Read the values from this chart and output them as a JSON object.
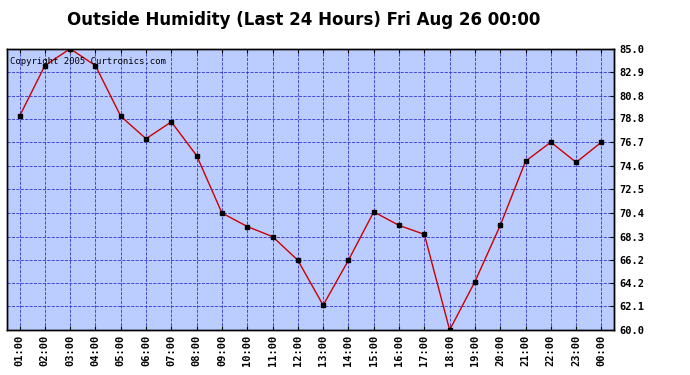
{
  "title": "Outside Humidity (Last 24 Hours) Fri Aug 26 00:00",
  "copyright": "Copyright 2005 Curtronics.com",
  "x_labels": [
    "01:00",
    "02:00",
    "03:00",
    "04:00",
    "05:00",
    "06:00",
    "07:00",
    "08:00",
    "09:00",
    "10:00",
    "11:00",
    "12:00",
    "13:00",
    "14:00",
    "15:00",
    "16:00",
    "17:00",
    "18:00",
    "19:00",
    "20:00",
    "21:00",
    "22:00",
    "23:00",
    "00:00"
  ],
  "y_values": [
    79.0,
    83.5,
    85.0,
    83.5,
    79.0,
    77.0,
    78.5,
    75.5,
    70.4,
    69.2,
    68.3,
    66.2,
    62.2,
    66.2,
    70.5,
    69.3,
    68.5,
    60.0,
    64.3,
    69.3,
    75.0,
    76.7,
    74.9,
    76.7
  ],
  "line_color": "#cc0000",
  "marker_color": "#000000",
  "bg_color": "#ffffff",
  "plot_bg_color": "#bbccff",
  "grid_color": "#3333cc",
  "border_color": "#000000",
  "right_y_labels": [
    "85.0",
    "82.9",
    "80.8",
    "78.8",
    "76.7",
    "74.6",
    "72.5",
    "70.4",
    "68.3",
    "66.2",
    "64.2",
    "62.1",
    "60.0"
  ],
  "ylim": [
    60.0,
    85.0
  ],
  "title_fontsize": 12,
  "tick_fontsize": 7.5,
  "copyright_fontsize": 6.5
}
